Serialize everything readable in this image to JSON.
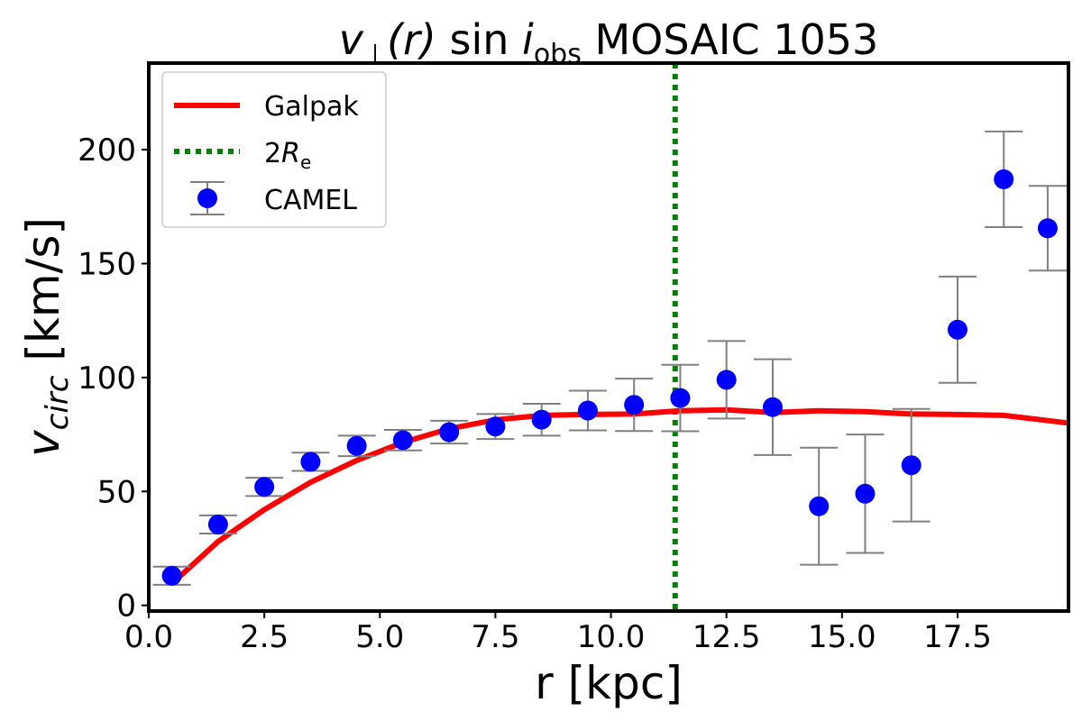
{
  "chart_data": {
    "type": "scatter",
    "title_parts": {
      "v": "v",
      "perp": "⊥",
      "r": "(r)",
      "sin": " sin ",
      "i": "i",
      "obs": "obs",
      "rest": " MOSAIC 1053"
    },
    "xlabel": "r [kpc]",
    "ylabel_parts": {
      "v": "v",
      "sub": "circ",
      "unit": " [km/s]"
    },
    "xlim": [
      0,
      19.9
    ],
    "ylim": [
      -2.5,
      238
    ],
    "xticks": [
      0.0,
      2.5,
      5.0,
      7.5,
      10.0,
      12.5,
      15.0,
      17.5
    ],
    "xtick_labels": [
      "0.0",
      "2.5",
      "5.0",
      "7.5",
      "10.0",
      "12.5",
      "15.0",
      "17.5"
    ],
    "yticks": [
      0,
      50,
      100,
      150,
      200
    ],
    "ytick_labels": [
      "0",
      "50",
      "100",
      "150",
      "200"
    ],
    "grid": false,
    "legend_placement": "top-left",
    "series": [
      {
        "name": "Galpak",
        "kind": "line",
        "color": "#ff0000",
        "x": [
          0.5,
          1.5,
          2.5,
          3.5,
          4.5,
          5.5,
          6.5,
          7.5,
          8.5,
          9.5,
          10.5,
          11.5,
          12.5,
          13.5,
          14.5,
          15.5,
          16.5,
          17.5,
          18.5,
          19.9
        ],
        "y": [
          9.5,
          28,
          42,
          54,
          63.6,
          71.5,
          77.5,
          81.4,
          83.4,
          83.8,
          84,
          85.4,
          85.8,
          84.6,
          85.4,
          85,
          84,
          83.8,
          83.4,
          80
        ]
      },
      {
        "name": "2R_e",
        "label_parts": {
          "two": "2",
          "R": "R",
          "sub": "e"
        },
        "kind": "vline",
        "color": "#008000",
        "style": "dotted",
        "x": 11.39
      },
      {
        "name": "CAMEL",
        "kind": "errorbar",
        "color": "#0000ff",
        "errcolor": "#808080",
        "x": [
          0.5,
          1.5,
          2.5,
          3.5,
          4.5,
          5.5,
          6.5,
          7.5,
          8.5,
          9.5,
          10.5,
          11.5,
          12.5,
          13.5,
          14.5,
          15.5,
          16.5,
          17.5,
          18.5,
          19.45
        ],
        "y": [
          13,
          35.5,
          52,
          63,
          70,
          72.5,
          76,
          78.5,
          81.5,
          85.5,
          88,
          91,
          99,
          87,
          43.5,
          49,
          61.5,
          121,
          187,
          165.5
        ],
        "yerr": [
          4,
          4,
          4,
          4,
          4.5,
          4.5,
          5,
          5.5,
          7,
          8.7,
          11.5,
          14.6,
          17,
          21,
          25.7,
          26,
          24.7,
          23.3,
          21,
          18.6
        ]
      }
    ]
  }
}
